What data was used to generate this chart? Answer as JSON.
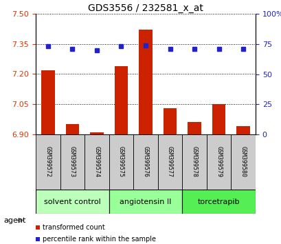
{
  "title": "GDS3556 / 232581_x_at",
  "samples": [
    "GSM399572",
    "GSM399573",
    "GSM399574",
    "GSM399575",
    "GSM399576",
    "GSM399577",
    "GSM399578",
    "GSM399579",
    "GSM399580"
  ],
  "bar_values": [
    7.22,
    6.95,
    6.91,
    7.24,
    7.42,
    7.03,
    6.96,
    7.05,
    6.94
  ],
  "bar_base": 6.9,
  "percentile_values": [
    73,
    71,
    70,
    73,
    74,
    71,
    71,
    71,
    71
  ],
  "ylim_left": [
    6.9,
    7.5
  ],
  "ylim_right": [
    0,
    100
  ],
  "yticks_left": [
    6.9,
    7.05,
    7.2,
    7.35,
    7.5
  ],
  "yticks_right": [
    0,
    25,
    50,
    75,
    100
  ],
  "ytick_labels_right": [
    "0",
    "25",
    "50",
    "75",
    "100%"
  ],
  "bar_color": "#cc2200",
  "dot_color": "#2222cc",
  "grid_color": "#000000",
  "bar_width": 0.55,
  "groups": [
    {
      "label": "solvent control",
      "indices": [
        0,
        1,
        2
      ],
      "color": "#bbffbb"
    },
    {
      "label": "angiotensin II",
      "indices": [
        3,
        4,
        5
      ],
      "color": "#99ff99"
    },
    {
      "label": "torcetrapib",
      "indices": [
        6,
        7,
        8
      ],
      "color": "#55ee55"
    }
  ],
  "agent_label": "agent",
  "legend_bar_label": "transformed count",
  "legend_dot_label": "percentile rank within the sample",
  "left_tick_color": "#dd3300",
  "right_tick_color": "#2222cc",
  "bg_color": "#ffffff",
  "xticklabel_bg": "#cccccc",
  "title_fontsize": 10,
  "tick_fontsize": 8,
  "sample_fontsize": 6,
  "group_fontsize": 8
}
